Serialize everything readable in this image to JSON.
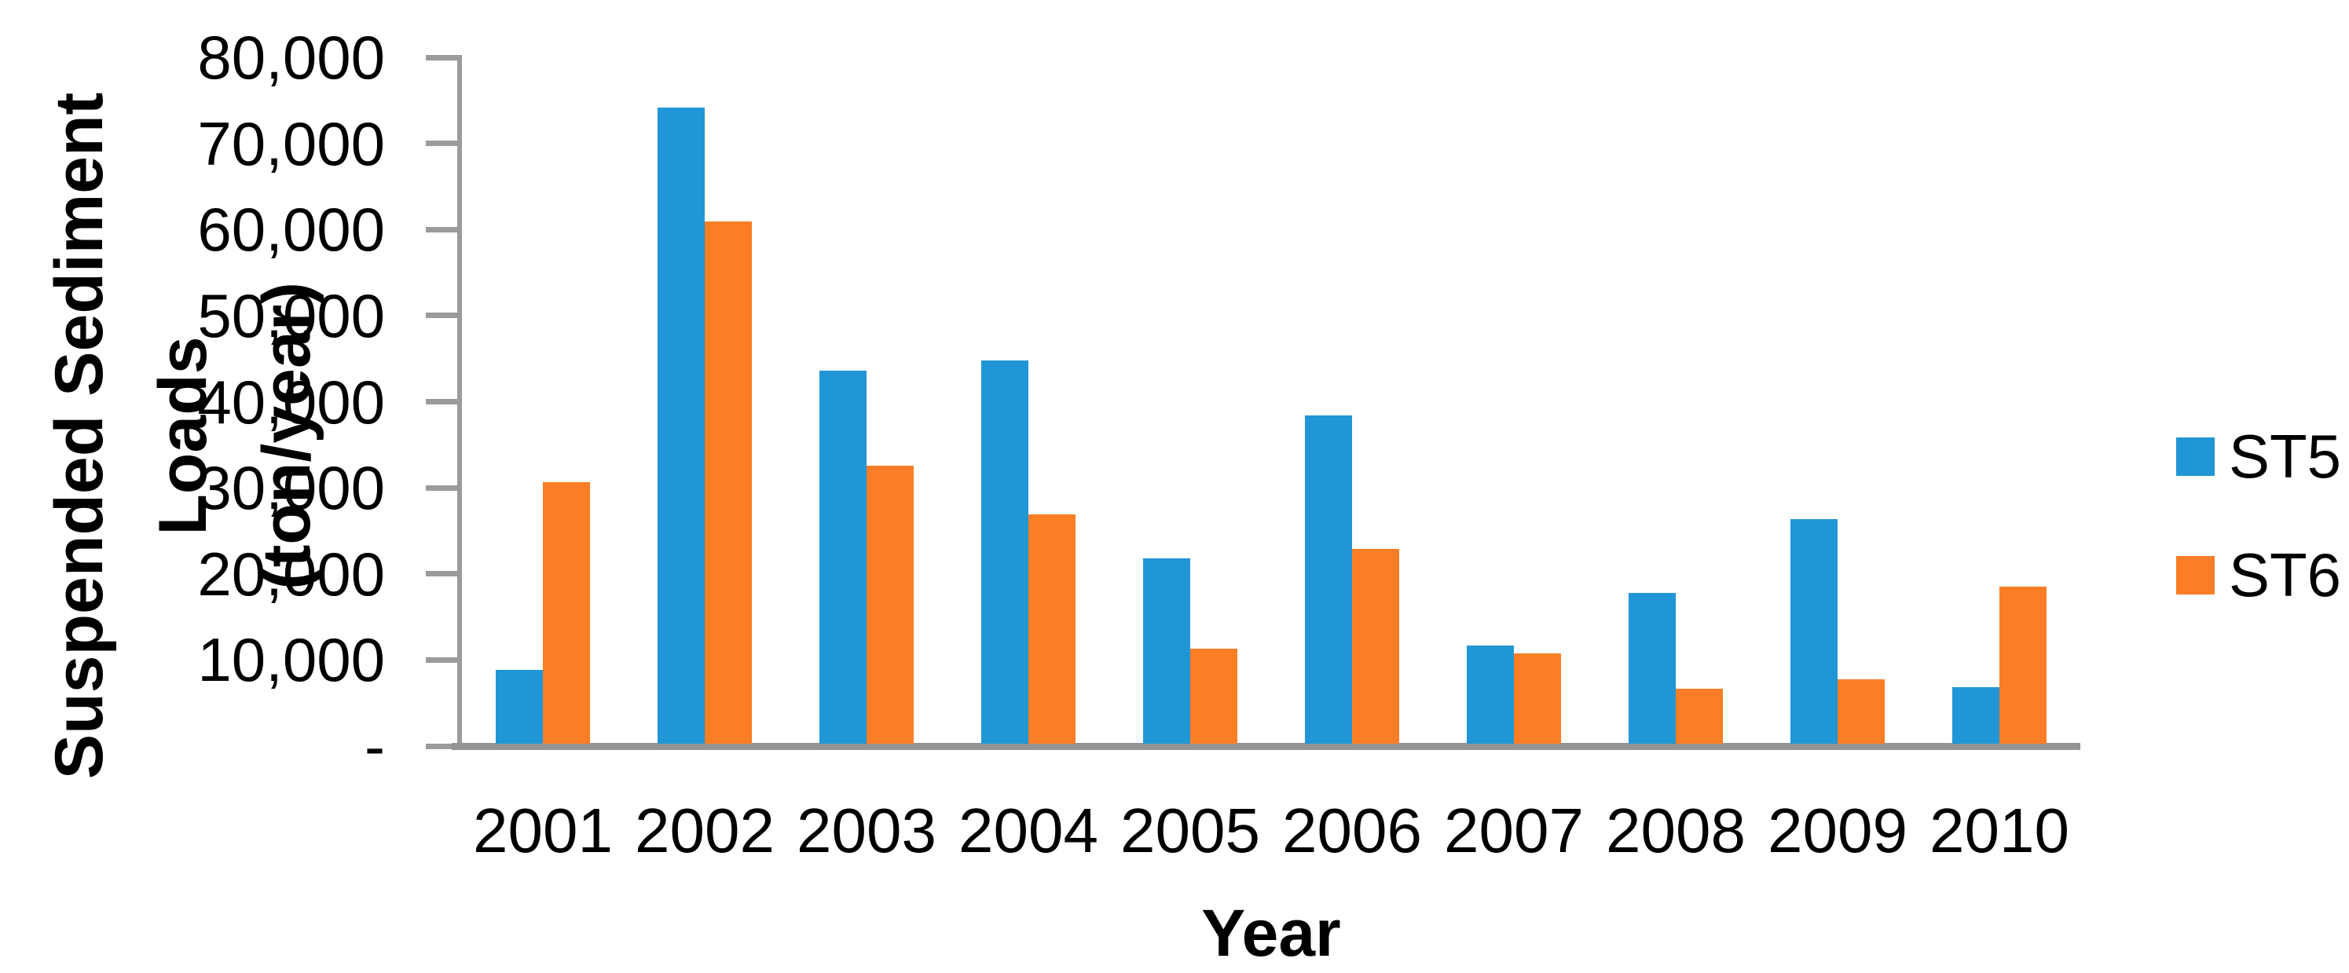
{
  "chart_data": {
    "type": "bar",
    "title": "",
    "categories": [
      "2001",
      "2002",
      "2003",
      "2004",
      "2005",
      "2006",
      "2007",
      "2008",
      "2009",
      "2010"
    ],
    "series": [
      {
        "name": "ST5",
        "color": "#2196d6",
        "values": [
          8600,
          73900,
          43300,
          44500,
          21500,
          38100,
          11400,
          17500,
          26100,
          6600
        ]
      },
      {
        "name": "ST6",
        "color": "#fb7d25",
        "values": [
          30400,
          60700,
          32300,
          26600,
          11000,
          22600,
          10500,
          6400,
          7500,
          18200
        ]
      }
    ],
    "xlabel": "Year",
    "ylabel_line1": "Suspended Sediment Loads",
    "ylabel_line2": "(ton/year)",
    "y_axis": {
      "min": 0,
      "max": 80000,
      "tick_step": 10000,
      "tick_labels": [
        "-",
        "10,000",
        "20,000",
        "30,000",
        "40,000",
        "50,000",
        "60,000",
        "70,000",
        "80,000"
      ]
    },
    "legend": {
      "position": "right",
      "entries": [
        "ST5",
        "ST6"
      ]
    },
    "grid": false,
    "axis_color": "#9b9b9b",
    "text_color": "#000000",
    "background_color": "#ffffff"
  }
}
